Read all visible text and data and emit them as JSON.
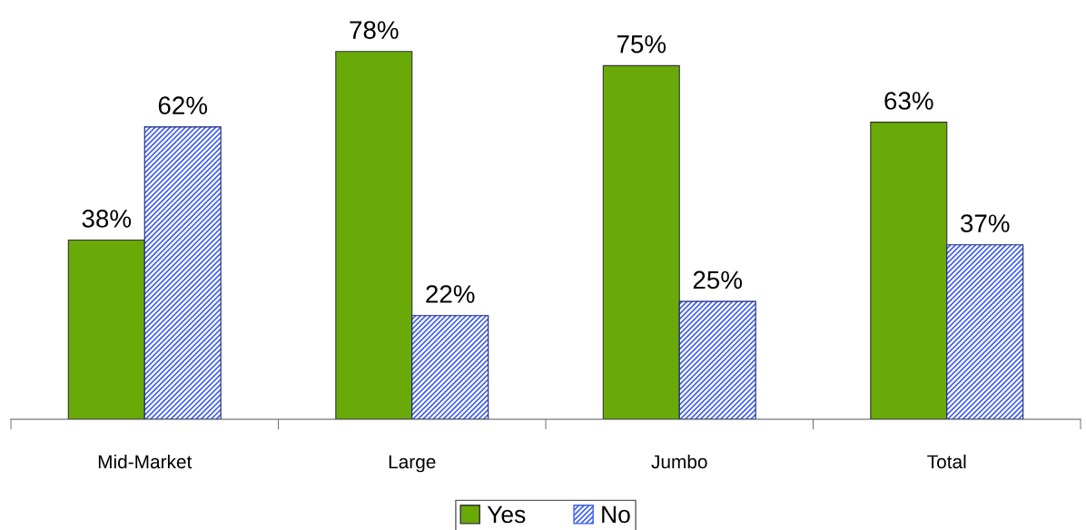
{
  "chart_data": {
    "type": "bar",
    "categories": [
      "Mid-Market",
      "Large",
      "Jumbo",
      "Total"
    ],
    "series": [
      {
        "name": "Yes",
        "color": "#6aaa08",
        "values": [
          38,
          78,
          75,
          63
        ],
        "value_labels": [
          "38%",
          "78%",
          "75%",
          "63%"
        ]
      },
      {
        "name": "No",
        "color": "#3d5ef0",
        "values": [
          62,
          22,
          25,
          37
        ],
        "value_labels": [
          "62%",
          "22%",
          "25%",
          "37%"
        ]
      }
    ],
    "legend": "bottom",
    "grid": false
  }
}
